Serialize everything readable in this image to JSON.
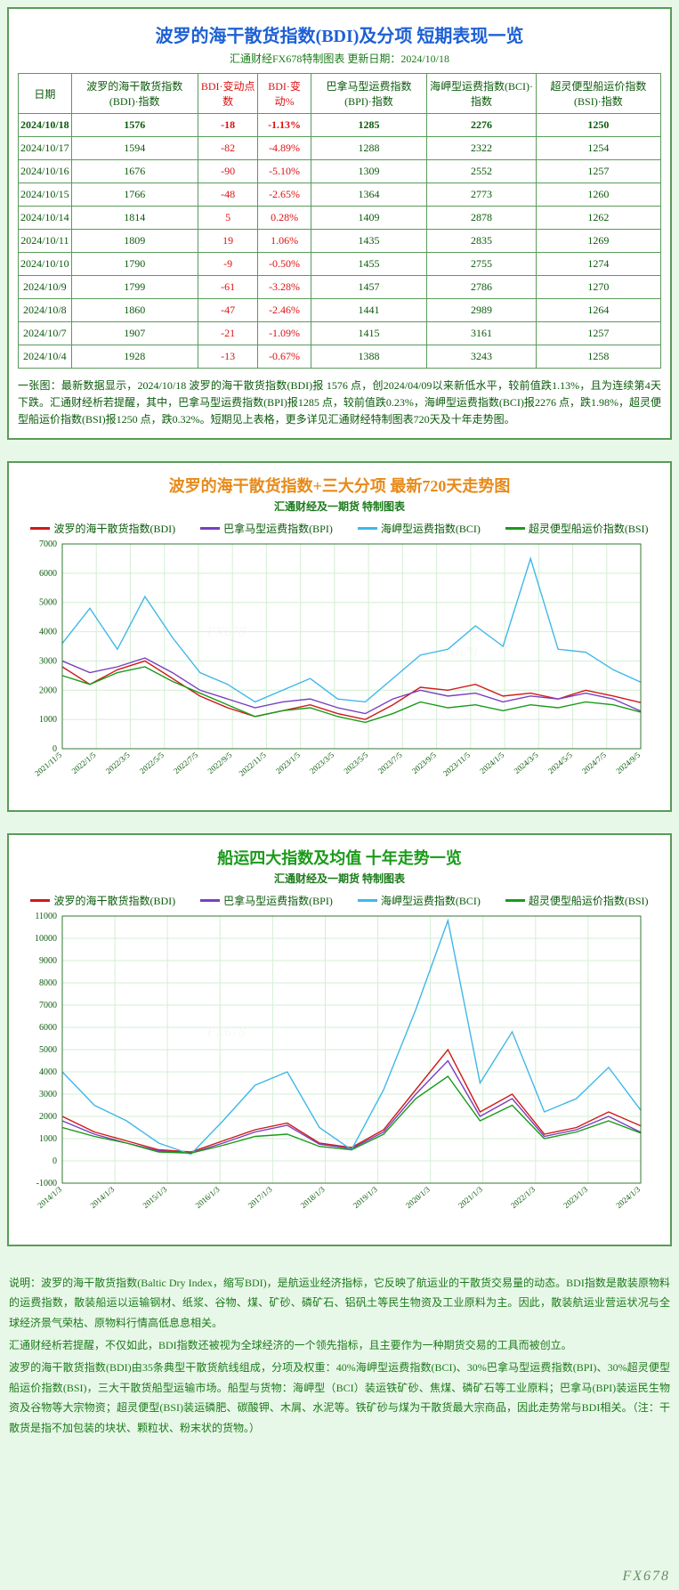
{
  "table": {
    "title": "波罗的海干散货指数(BDI)及分项  短期表现一览",
    "subtitle": "汇通财经FX678特制图表   更新日期：2024/10/18",
    "cols": [
      "日期",
      "波罗的海干散货指数(BDI)·指数",
      "BDI·变动点数",
      "BDI·变动%",
      "巴拿马型运费指数(BPI)·指数",
      "海岬型运费指数(BCI)·指数",
      "超灵便型船运价指数(BSI)·指数"
    ],
    "redcols": [
      2,
      3
    ],
    "rows": [
      [
        "2024/10/18",
        "1576",
        "-18",
        "-1.13%",
        "1285",
        "2276",
        "1250"
      ],
      [
        "2024/10/17",
        "1594",
        "-82",
        "-4.89%",
        "1288",
        "2322",
        "1254"
      ],
      [
        "2024/10/16",
        "1676",
        "-90",
        "-5.10%",
        "1309",
        "2552",
        "1257"
      ],
      [
        "2024/10/15",
        "1766",
        "-48",
        "-2.65%",
        "1364",
        "2773",
        "1260"
      ],
      [
        "2024/10/14",
        "1814",
        "5",
        "0.28%",
        "1409",
        "2878",
        "1262"
      ],
      [
        "2024/10/11",
        "1809",
        "19",
        "1.06%",
        "1435",
        "2835",
        "1269"
      ],
      [
        "2024/10/10",
        "1790",
        "-9",
        "-0.50%",
        "1455",
        "2755",
        "1274"
      ],
      [
        "2024/10/9",
        "1799",
        "-61",
        "-3.28%",
        "1457",
        "2786",
        "1270"
      ],
      [
        "2024/10/8",
        "1860",
        "-47",
        "-2.46%",
        "1441",
        "2989",
        "1264"
      ],
      [
        "2024/10/7",
        "1907",
        "-21",
        "-1.09%",
        "1415",
        "3161",
        "1257"
      ],
      [
        "2024/10/4",
        "1928",
        "-13",
        "-0.67%",
        "1388",
        "3243",
        "1258"
      ]
    ],
    "note": "一张图：最新数据显示，2024/10/18 波罗的海干散货指数(BDI)报 1576 点，创2024/04/09以来新低水平，较前值跌1.13%，且为连续第4天下跌。汇通财经析若提醒，其中，巴拿马型运费指数(BPI)报1285 点，较前值跌0.23%，海岬型运费指数(BCI)报2276 点，跌1.98%，超灵便型船运价指数(BSI)报1250 点，跌0.32%。短期见上表格，更多详见汇通财经特制图表720天及十年走势图。"
  },
  "series": {
    "labels": [
      "波罗的海干散货指数(BDI)",
      "巴拿马型运费指数(BPI)",
      "海岬型运费指数(BCI)",
      "超灵便型船运价指数(BSI)"
    ],
    "colors": [
      "#d11919",
      "#7a3fbf",
      "#3fb8e8",
      "#1a9a1a"
    ]
  },
  "chart720": {
    "title": "波罗的海干散货指数+三大分项  最新720天走势图",
    "subtitle": "汇通财经及一期货  特制图表",
    "title_color": "#e88a1a",
    "ylim": [
      0,
      7000
    ],
    "ystep": 1000,
    "xlabels": [
      "2021/11/5",
      "2022/1/5",
      "2022/3/5",
      "2022/5/5",
      "2022/7/5",
      "2022/9/5",
      "2022/11/5",
      "2023/1/5",
      "2023/3/5",
      "2023/5/5",
      "2023/7/5",
      "2023/9/5",
      "2023/11/5",
      "2024/1/5",
      "2024/3/5",
      "2024/5/5",
      "2024/7/5",
      "2024/9/5"
    ],
    "data": {
      "BDI": [
        2800,
        2200,
        2700,
        3000,
        2400,
        1800,
        1400,
        1100,
        1300,
        1500,
        1200,
        1000,
        1500,
        2100,
        2000,
        2200,
        1800,
        1900,
        1700,
        2000,
        1800,
        1576
      ],
      "BPI": [
        3000,
        2600,
        2800,
        3100,
        2600,
        2000,
        1700,
        1400,
        1600,
        1700,
        1400,
        1200,
        1700,
        2000,
        1800,
        1900,
        1600,
        1800,
        1700,
        1900,
        1700,
        1285
      ],
      "BCI": [
        3600,
        4800,
        3400,
        5200,
        3800,
        2600,
        2200,
        1600,
        2000,
        2400,
        1700,
        1600,
        2400,
        3200,
        3400,
        4200,
        3500,
        6500,
        3400,
        3300,
        2700,
        2276
      ],
      "BSI": [
        2500,
        2200,
        2600,
        2800,
        2300,
        1900,
        1500,
        1100,
        1300,
        1400,
        1100,
        900,
        1200,
        1600,
        1400,
        1500,
        1300,
        1500,
        1400,
        1600,
        1500,
        1250
      ]
    }
  },
  "chart10y": {
    "title": "船运四大指数及均值  十年走势一览",
    "subtitle": "汇通财经及一期货  特制图表",
    "title_color": "#1a9a1a",
    "ylim": [
      -1000,
      11000
    ],
    "ystep": 1000,
    "xlabels": [
      "2014/1/3",
      "2014/1/3",
      "2015/1/3",
      "2016/1/3",
      "2017/1/3",
      "2018/1/3",
      "2019/1/3",
      "2020/1/3",
      "2021/1/3",
      "2022/1/3",
      "2023/1/3",
      "2024/1/3"
    ],
    "data": {
      "BDI": [
        2000,
        1300,
        900,
        500,
        400,
        900,
        1400,
        1700,
        800,
        600,
        1400,
        3200,
        5000,
        2200,
        3000,
        1200,
        1500,
        2200,
        1576
      ],
      "BPI": [
        1800,
        1200,
        800,
        450,
        350,
        800,
        1300,
        1600,
        750,
        550,
        1300,
        3000,
        4500,
        2000,
        2800,
        1100,
        1400,
        2000,
        1285
      ],
      "BCI": [
        4000,
        2500,
        1800,
        800,
        300,
        1800,
        3400,
        4000,
        1500,
        500,
        3200,
        6800,
        10800,
        3500,
        5800,
        2200,
        2800,
        4200,
        2276
      ],
      "BSI": [
        1500,
        1100,
        800,
        400,
        350,
        700,
        1100,
        1200,
        650,
        500,
        1200,
        2800,
        3800,
        1800,
        2500,
        1000,
        1300,
        1800,
        1250
      ]
    }
  },
  "desc": [
    "说明：波罗的海干散货指数(Baltic Dry Index，缩写BDI)，是航运业经济指标，它反映了航运业的干散货交易量的动态。BDI指数是散装原物料的运费指数，散装船运以运输钢材、纸浆、谷物、煤、矿砂、磷矿石、铝矾土等民生物资及工业原料为主。因此，散装航运业营运状况与全球经济景气荣枯、原物料行情高低息息相关。",
    "汇通财经析若提醒，不仅如此，BDI指数还被视为全球经济的一个领先指标，且主要作为一种期货交易的工具而被创立。",
    "波罗的海干散货指数(BDI)由35条典型干散货航线组成，分项及权重：40%海岬型运费指数(BCI)、30%巴拿马型运费指数(BPI)、30%超灵便型船运价指数(BSI)，三大干散货船型运输市场。船型与货物：海岬型（BCI）装运铁矿砂、焦煤、磷矿石等工业原料；巴拿马(BPI)装运民生物资及谷物等大宗物资；超灵便型(BSI)装运磷肥、碳酸钾、木屑、水泥等。铁矿砂与煤为干散货最大宗商品，因此走势常与BDI相关。（注：干散货是指不加包装的块状、颗粒状、粉末状的货物。）"
  ],
  "watermark": "FX678"
}
